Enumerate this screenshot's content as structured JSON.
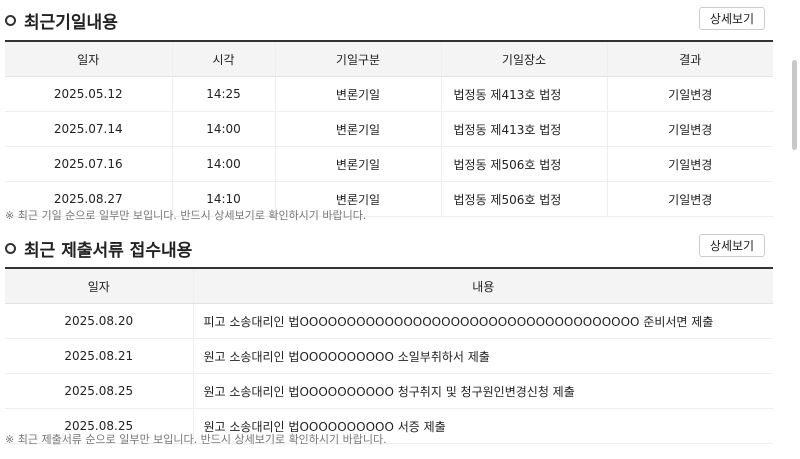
{
  "hearings": {
    "title": "최근기일내용",
    "detail_button": "상세보기",
    "columns": [
      "일자",
      "시각",
      "기일구분",
      "기일장소",
      "결과"
    ],
    "rows": [
      [
        "2025.05.12",
        "14:25",
        "변론기일",
        "법정동 제413호 법정",
        "기일변경"
      ],
      [
        "2025.07.14",
        "14:00",
        "변론기일",
        "법정동 제413호 법정",
        "기일변경"
      ],
      [
        "2025.07.16",
        "14:00",
        "변론기일",
        "법정동 제506호 법정",
        "기일변경"
      ],
      [
        "2025.08.27",
        "14:10",
        "변론기일",
        "법정동 제506호 법정",
        "기일변경"
      ]
    ],
    "note": "※ 최근 기일 순으로 일부만 보입니다. 반드시 상세보기로 확인하시기 바랍니다."
  },
  "filings": {
    "title": "최근 제출서류 접수내용",
    "detail_button": "상세보기",
    "columns": [
      "일자",
      "내용"
    ],
    "rows": [
      [
        "2025.08.20",
        "피고 소송대리인 법OOOOOOOOOOOOOOOOOOOOOOOOOOOOOOOOOOOO 준비서면 제출"
      ],
      [
        "2025.08.21",
        "원고 소송대리인 법OOOOOOOOOO 소일부취하서 제출"
      ],
      [
        "2025.08.25",
        "원고 소송대리인 법OOOOOOOOOO 청구취지 및 청구원인변경신청 제출"
      ],
      [
        "2025.08.25",
        "원고 소송대리인 법OOOOOOOOOO 서증 제출"
      ]
    ],
    "note": "※ 최근 제출서류 순으로 일부만 보입니다. 반드시 상세보기로 확인하시기 바랍니다."
  }
}
